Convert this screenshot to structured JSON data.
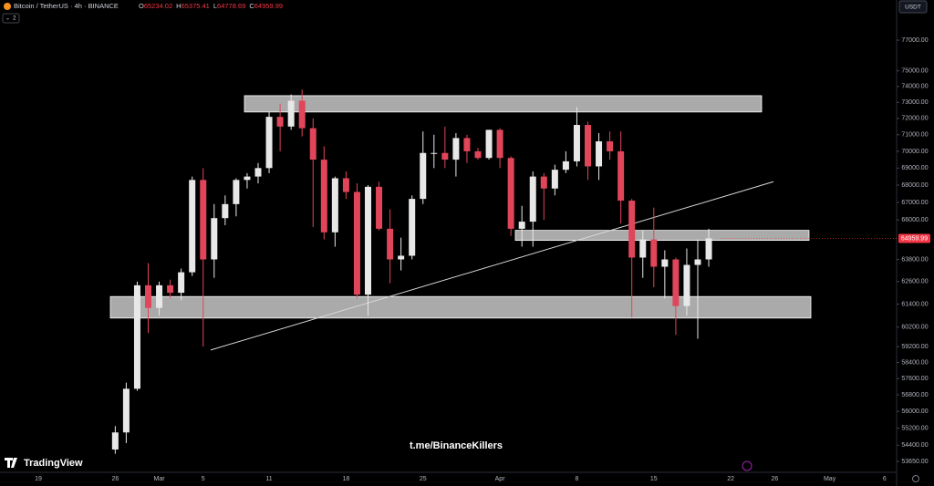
{
  "chart_data": {
    "type": "candlestick",
    "title": "Bitcoin / TetherUS · 4h · BINANCE",
    "ohlc": [
      {
        "key": "O",
        "value": 65234.02
      },
      {
        "key": "H",
        "value": 65375.41
      },
      {
        "key": "L",
        "value": 64778.69
      },
      {
        "key": "C",
        "value": 64959.99
      }
    ],
    "indicator_count": 2,
    "currency": "USDT",
    "watermark": "t.me/BinanceKillers",
    "brand": "TradingView",
    "categories": [
      "19",
      null,
      null,
      null,
      null,
      null,
      null,
      "26",
      null,
      null,
      null,
      "Mar",
      null,
      null,
      null,
      "5",
      null,
      null,
      null,
      null,
      null,
      "11",
      null,
      null,
      null,
      null,
      null,
      null,
      "18",
      null,
      null,
      null,
      null,
      null,
      null,
      "25",
      null,
      null,
      null,
      null,
      null,
      null,
      "Apr",
      null,
      null,
      null,
      null,
      null,
      null,
      "8",
      null,
      null,
      null,
      null,
      null,
      null,
      "15",
      null,
      null,
      null,
      null,
      null,
      null,
      "22",
      null,
      null,
      null,
      "26",
      null,
      null,
      null,
      null,
      "May",
      null,
      null,
      null,
      null,
      "6"
    ],
    "open": [
      null,
      null,
      null,
      null,
      null,
      null,
      null,
      54200,
      55000,
      57100,
      62400,
      61200,
      62400,
      62000,
      63100,
      68300,
      63800,
      66100,
      66900,
      68300,
      68500,
      69000,
      72100,
      71500,
      73100,
      71400,
      69500,
      65300,
      68400,
      67600,
      61900,
      67900,
      65500,
      63800,
      64000,
      67200,
      69900,
      69900,
      69500,
      70800,
      70000,
      69600,
      71300,
      69600,
      65500,
      65900,
      68500,
      67800,
      68900,
      69400,
      71600,
      69100,
      70600,
      70000,
      67100,
      63900,
      64900,
      63400,
      63800,
      61300,
      63500,
      63800,
      null,
      null,
      null,
      null,
      null,
      null,
      null,
      null,
      null,
      null,
      null,
      null,
      null,
      null,
      null,
      null
    ],
    "high": [
      null,
      null,
      null,
      null,
      null,
      null,
      null,
      55300,
      57400,
      62600,
      63600,
      62600,
      62700,
      63300,
      68500,
      69000,
      66900,
      67400,
      68400,
      68700,
      69300,
      72400,
      72900,
      73500,
      73800,
      72000,
      70300,
      68500,
      68800,
      68100,
      68000,
      68200,
      66600,
      65000,
      67400,
      71200,
      71000,
      71500,
      71100,
      71000,
      70200,
      71300,
      71400,
      69700,
      66800,
      68800,
      68700,
      69200,
      70000,
      72700,
      71800,
      71100,
      71200,
      71200,
      67200,
      65400,
      66700,
      64300,
      63900,
      64400,
      64900,
      65500,
      null,
      null,
      null,
      null,
      null,
      null,
      null,
      null,
      null,
      null,
      null,
      null,
      null,
      null,
      null,
      null
    ],
    "low": [
      null,
      null,
      null,
      null,
      null,
      null,
      null,
      54000,
      54500,
      57000,
      59900,
      60800,
      61700,
      61600,
      62900,
      59200,
      62800,
      65700,
      66200,
      67800,
      68100,
      68700,
      70000,
      71300,
      70900,
      65600,
      64900,
      64500,
      67200,
      61700,
      60800,
      65400,
      62500,
      63200,
      63800,
      66900,
      69000,
      69000,
      68500,
      69300,
      69500,
      69500,
      69000,
      65100,
      64500,
      64500,
      66000,
      67400,
      68700,
      69100,
      68300,
      68300,
      69500,
      65800,
      60700,
      62800,
      62300,
      61700,
      59800,
      60800,
      59600,
      63400,
      null,
      null,
      null,
      null,
      null,
      null,
      null,
      null,
      null,
      null,
      null,
      null,
      null,
      null,
      null,
      null
    ],
    "close": [
      null,
      null,
      null,
      null,
      null,
      null,
      null,
      55000,
      57100,
      62400,
      61200,
      62400,
      62000,
      63100,
      68300,
      63800,
      66100,
      66900,
      68300,
      68500,
      69000,
      72100,
      71500,
      73100,
      71400,
      69500,
      65300,
      68400,
      67600,
      61900,
      67900,
      65500,
      63800,
      64000,
      67200,
      69900,
      69900,
      69500,
      70800,
      70000,
      69600,
      71300,
      69600,
      65500,
      65900,
      68500,
      67800,
      68900,
      69400,
      71600,
      69100,
      70600,
      70000,
      67100,
      63900,
      64900,
      63400,
      63800,
      61300,
      63500,
      63800,
      64960,
      null,
      null,
      null,
      null,
      null,
      null,
      null,
      null,
      null,
      null,
      null,
      null,
      null,
      null,
      null,
      null
    ],
    "up_color": "#e8e8e8",
    "down_color": "#e0455a",
    "log_scale": true,
    "ylim": [
      53150,
      79700
    ],
    "yticks": [
      {
        "value": 77000,
        "label": "77000.00"
      },
      {
        "value": 75000,
        "label": "75000.00"
      },
      {
        "value": 74000,
        "label": "74000.00"
      },
      {
        "value": 73000,
        "label": "73000.00"
      },
      {
        "value": 72000,
        "label": "72000.00"
      },
      {
        "value": 71000,
        "label": "71000.00"
      },
      {
        "value": 70000,
        "label": "70000.00"
      },
      {
        "value": 69000,
        "label": "69000.00"
      },
      {
        "value": 68000,
        "label": "68000.00"
      },
      {
        "value": 67000,
        "label": "67000.00"
      },
      {
        "value": 66000,
        "label": "66000.00"
      },
      {
        "value": 63800,
        "label": "63800.00"
      },
      {
        "value": 62600,
        "label": "62600.00"
      },
      {
        "value": 61400,
        "label": "61400.00"
      },
      {
        "value": 60200,
        "label": "60200.00"
      },
      {
        "value": 59200,
        "label": "59200.00"
      },
      {
        "value": 58400,
        "label": "58400.00"
      },
      {
        "value": 57600,
        "label": "57600.00"
      },
      {
        "value": 56800,
        "label": "56800.00"
      },
      {
        "value": 56000,
        "label": "56000.00"
      },
      {
        "value": 55200,
        "label": "55200.00"
      },
      {
        "value": 54400,
        "label": "54400.00"
      },
      {
        "value": 53650,
        "label": "53650.00"
      }
    ],
    "last_price": {
      "value": 64959.99,
      "label": "64959.99"
    },
    "zones": [
      {
        "low": 72400,
        "high": 73420
      },
      {
        "low": 64850,
        "high": 65410
      },
      {
        "low": 60670,
        "high": 61800
      }
    ],
    "trendline": [
      59030,
      68200
    ]
  }
}
